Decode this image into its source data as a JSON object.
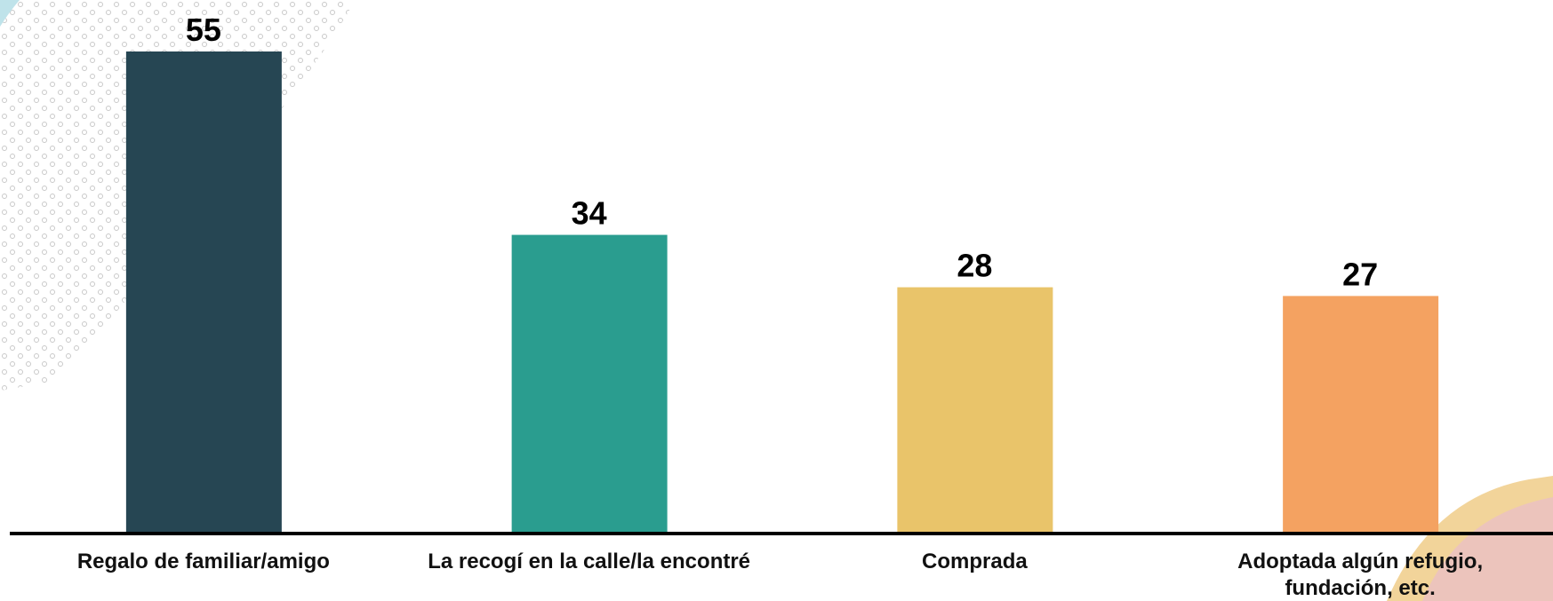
{
  "chart_data": {
    "type": "bar",
    "categories": [
      "Regalo de familiar/amigo",
      "La recogí en la calle/la encontré",
      "Comprada",
      "Adoptada algún refugio, fundación, etc."
    ],
    "values": [
      55,
      34,
      28,
      27
    ],
    "colors": [
      "#264653",
      "#2a9d8f",
      "#e9c46a",
      "#f4a261"
    ]
  }
}
